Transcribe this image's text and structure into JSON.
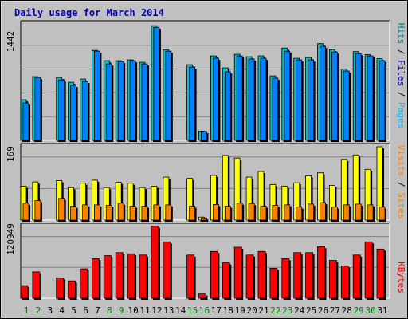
{
  "title": "Daily usage for March 2014",
  "colors": {
    "background": "#c0c0c0",
    "title": "#0000c0",
    "hits": "#00c0c0",
    "hits_label": "#008080",
    "files": "#0080ff",
    "files_label": "#0000c0",
    "pages": "#00c0ff",
    "visits": "#ffff00",
    "visits_label": "#ff8000",
    "sites": "#ff8000",
    "sites_label": "#ff8000",
    "kbytes": "#ff0000",
    "weekend_day_label": "#008000",
    "weekday_day_label": "#000000"
  },
  "chart_data": [
    {
      "type": "bar",
      "panel": "hits-files-pages",
      "title": "Daily usage for March 2014",
      "ylabel_parts": [
        "Pages",
        "Files",
        "Hits"
      ],
      "ymax_label": "1442",
      "ylim": [
        0,
        1442
      ],
      "categories": [
        "1",
        "2",
        "3",
        "4",
        "5",
        "6",
        "7",
        "8",
        "9",
        "10",
        "11",
        "12",
        "13",
        "14",
        "15",
        "16",
        "17",
        "18",
        "19",
        "20",
        "21",
        "22",
        "23",
        "24",
        "25",
        "26",
        "27",
        "28",
        "29",
        "30",
        "31"
      ],
      "series": [
        {
          "name": "Hits",
          "values": [
            510,
            800,
            0,
            790,
            730,
            770,
            1130,
            1000,
            1000,
            1010,
            980,
            1440,
            1140,
            0,
            950,
            115,
            1060,
            910,
            1080,
            1050,
            1060,
            810,
            1160,
            1030,
            1040,
            1215,
            1140,
            895,
            1115,
            1075,
            1025
          ]
        },
        {
          "name": "Files",
          "values": [
            470,
            790,
            0,
            760,
            690,
            740,
            1120,
            960,
            990,
            1000,
            960,
            1420,
            1120,
            0,
            920,
            110,
            1030,
            860,
            1060,
            1020,
            1030,
            780,
            1120,
            1010,
            1010,
            1180,
            1110,
            870,
            1090,
            1060,
            1000
          ]
        },
        {
          "name": "Pages",
          "values": [
            0,
            0,
            0,
            0,
            0,
            0,
            0,
            0,
            0,
            0,
            0,
            0,
            0,
            0,
            0,
            0,
            0,
            0,
            0,
            0,
            0,
            0,
            0,
            0,
            0,
            0,
            0,
            0,
            0,
            0,
            0
          ]
        }
      ]
    },
    {
      "type": "bar",
      "panel": "visits-sites",
      "ylabel_parts": [
        "Sites",
        "Visits"
      ],
      "ymax_label": "169",
      "ylim": [
        0,
        169
      ],
      "categories": [
        "1",
        "2",
        "3",
        "4",
        "5",
        "6",
        "7",
        "8",
        "9",
        "10",
        "11",
        "12",
        "13",
        "14",
        "15",
        "16",
        "17",
        "18",
        "19",
        "20",
        "21",
        "22",
        "23",
        "24",
        "25",
        "26",
        "27",
        "28",
        "29",
        "30",
        "31"
      ],
      "series": [
        {
          "name": "Visits",
          "values": [
            78,
            88,
            0,
            91,
            75,
            85,
            92,
            75,
            87,
            85,
            75,
            78,
            99,
            0,
            96,
            7,
            103,
            149,
            143,
            99,
            112,
            82,
            78,
            86,
            102,
            109,
            80,
            140,
            150,
            117,
            169
          ]
        },
        {
          "name": "Sites",
          "values": [
            39,
            45,
            0,
            50,
            32,
            35,
            35,
            34,
            39,
            32,
            32,
            35,
            35,
            0,
            32,
            5,
            36,
            32,
            39,
            38,
            32,
            34,
            35,
            30,
            37,
            40,
            30,
            35,
            37,
            35,
            30
          ]
        }
      ]
    },
    {
      "type": "bar",
      "panel": "kbytes",
      "ylabel_parts": [
        "KBytes"
      ],
      "ymax_label": "120949",
      "ylim": [
        0,
        120949
      ],
      "categories": [
        "1",
        "2",
        "3",
        "4",
        "5",
        "6",
        "7",
        "8",
        "9",
        "10",
        "11",
        "12",
        "13",
        "14",
        "15",
        "16",
        "17",
        "18",
        "19",
        "20",
        "21",
        "22",
        "23",
        "24",
        "25",
        "26",
        "27",
        "28",
        "29",
        "30",
        "31"
      ],
      "series": [
        {
          "name": "KBytes",
          "values": [
            21000,
            44000,
            0,
            34000,
            29000,
            49000,
            66000,
            71000,
            76000,
            74000,
            72000,
            120000,
            94000,
            0,
            72000,
            7000,
            78000,
            59000,
            85000,
            72000,
            78000,
            50000,
            66000,
            76000,
            76000,
            86000,
            63000,
            54000,
            72000,
            94000,
            82000
          ]
        }
      ]
    }
  ],
  "day_labels": [
    "1",
    "2",
    "3",
    "4",
    "5",
    "6",
    "7",
    "8",
    "9",
    "10",
    "11",
    "12",
    "13",
    "14",
    "15",
    "16",
    "17",
    "18",
    "19",
    "20",
    "21",
    "22",
    "23",
    "24",
    "25",
    "26",
    "27",
    "28",
    "29",
    "30",
    "31"
  ],
  "weekend_days": [
    1,
    2,
    8,
    9,
    15,
    16,
    22,
    23,
    29,
    30
  ]
}
